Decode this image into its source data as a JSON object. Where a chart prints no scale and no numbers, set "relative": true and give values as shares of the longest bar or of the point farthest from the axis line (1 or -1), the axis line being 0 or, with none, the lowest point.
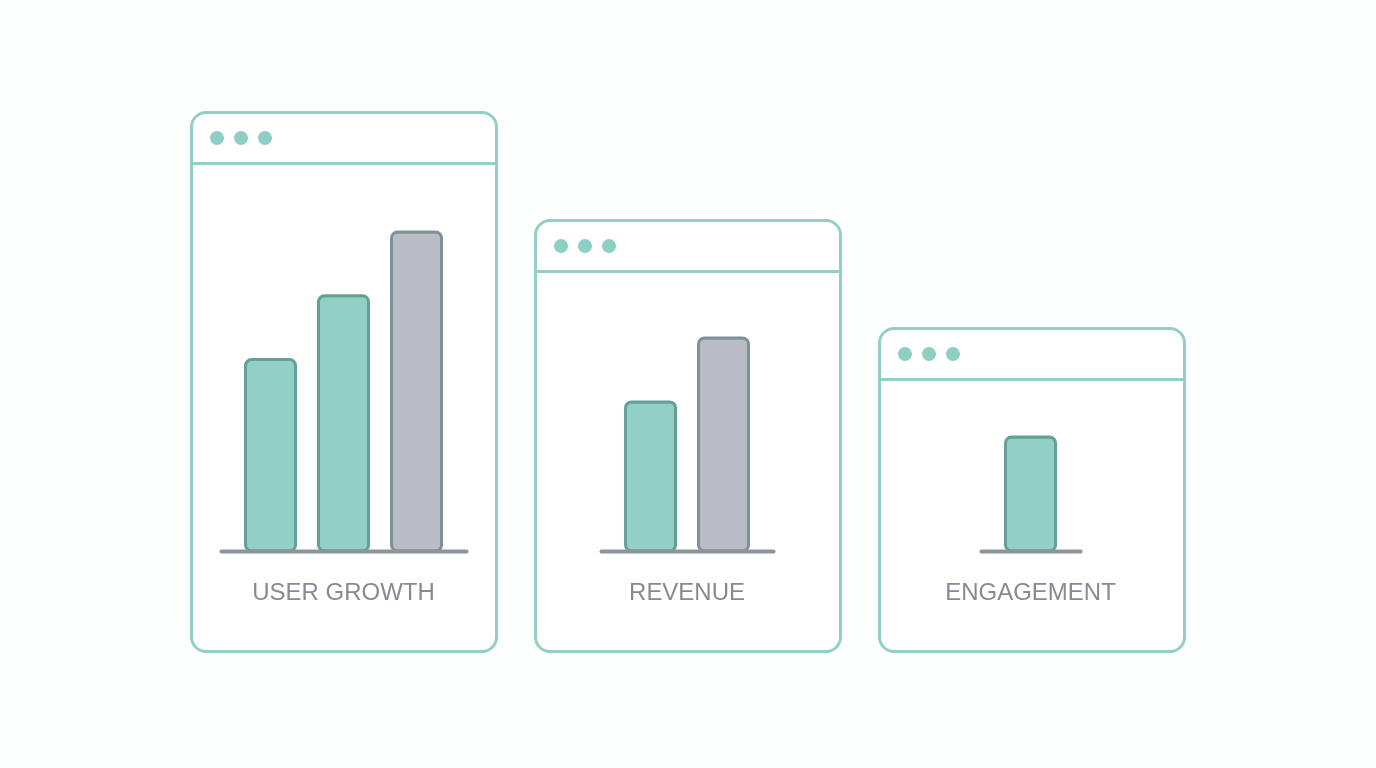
{
  "chart_data": [
    {
      "type": "bar",
      "title": "USER GROWTH",
      "categories": [
        null,
        null,
        null
      ],
      "values": [
        0.6,
        0.8,
        1
      ],
      "colors": [
        "#92d0c6",
        "#92d0c6",
        "#b9bcc5"
      ],
      "relative": true,
      "tick_labels": false
    },
    {
      "type": "bar",
      "title": "REVENUE",
      "categories": [
        null,
        null
      ],
      "values": [
        0.7,
        1
      ],
      "colors": [
        "#92d0c6",
        "#b9bcc5"
      ],
      "relative": true,
      "tick_labels": false
    },
    {
      "type": "bar",
      "title": "ENGAGEMENT",
      "categories": [
        null
      ],
      "values": [
        1
      ],
      "colors": [
        "#92d0c6"
      ],
      "relative": true,
      "tick_labels": false
    }
  ]
}
